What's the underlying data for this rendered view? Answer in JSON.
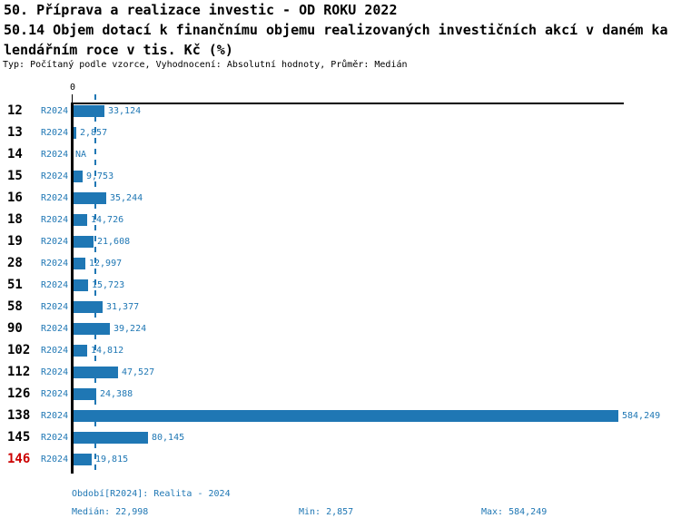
{
  "header": {
    "title_line1": "50. Příprava a realizace investic - OD ROKU 2022",
    "title_line2": "50.14 Objem dotací k finančnímu objemu realizovaných investičních akcí v daném ka",
    "title_line3": "lendářním roce v tis. Kč (%)",
    "subtitle": "Typ: Počítaný podle vzorce, Vyhodnocení: Absolutní hodnoty, Průměr: Medián"
  },
  "chart_data": {
    "type": "bar",
    "orientation": "horizontal",
    "title": "50.14 Objem dotací k finančnímu objemu realizovaných investičních akcí v daném kalendářním roce v tis. Kč (%)",
    "axis_zero_label": "0",
    "series_label": "R2024",
    "categories": [
      "12",
      "13",
      "14",
      "15",
      "16",
      "18",
      "19",
      "28",
      "51",
      "58",
      "90",
      "102",
      "112",
      "126",
      "138",
      "145",
      "146"
    ],
    "values": [
      33124,
      2857,
      null,
      9753,
      35244,
      14726,
      21608,
      12997,
      15723,
      31377,
      39224,
      14812,
      47527,
      24388,
      584249,
      80145,
      19815
    ],
    "value_labels": [
      "33,124",
      "2,857",
      "NA",
      "9,753",
      "35,244",
      "14,726",
      "21,608",
      "12,997",
      "15,723",
      "31,377",
      "39,224",
      "14,812",
      "47,527",
      "24,388",
      "584,249",
      "80,145",
      "19,815"
    ],
    "highlighted_category": "146",
    "median_value": 22998,
    "min_value": 2857,
    "max_value": 584249,
    "xlim": [
      0,
      584249
    ],
    "grid": false,
    "legend_position": "none",
    "bar_color": "#1f77b4",
    "median_line_color": "#1f77b4",
    "highlight_color": "#cc0000"
  },
  "footer": {
    "period": "Období[R2024]: Realita - 2024",
    "median": "Medián: 22,998",
    "min": "Min: 2,857",
    "max": "Max: 584,249"
  }
}
